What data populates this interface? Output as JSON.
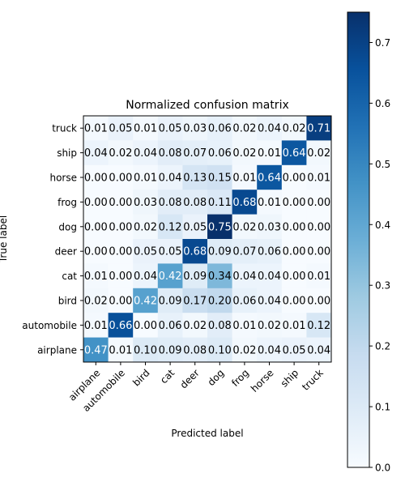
{
  "chart_data": {
    "type": "heatmap",
    "title": "Normalized confusion matrix",
    "xlabel": "Predicted label",
    "ylabel": "True label",
    "x_categories": [
      "airplane",
      "automobile",
      "bird",
      "cat",
      "deer",
      "dog",
      "frog",
      "horse",
      "ship",
      "truck"
    ],
    "y_categories": [
      "truck",
      "ship",
      "horse",
      "frog",
      "dog",
      "deer",
      "cat",
      "bird",
      "automobile",
      "airplane"
    ],
    "values": [
      [
        0.01,
        0.05,
        0.01,
        0.05,
        0.03,
        0.06,
        0.02,
        0.04,
        0.02,
        0.71
      ],
      [
        0.04,
        0.02,
        0.04,
        0.08,
        0.07,
        0.06,
        0.02,
        0.01,
        0.64,
        0.02
      ],
      [
        0.0,
        0.0,
        0.01,
        0.04,
        0.13,
        0.15,
        0.01,
        0.64,
        0.0,
        0.01
      ],
      [
        0.0,
        0.0,
        0.03,
        0.08,
        0.08,
        0.11,
        0.68,
        0.01,
        0.0,
        0.0
      ],
      [
        0.0,
        0.0,
        0.02,
        0.12,
        0.05,
        0.75,
        0.02,
        0.03,
        0.0,
        0.0
      ],
      [
        0.0,
        0.0,
        0.05,
        0.05,
        0.68,
        0.09,
        0.07,
        0.06,
        0.0,
        0.0
      ],
      [
        0.01,
        0.0,
        0.04,
        0.42,
        0.09,
        0.34,
        0.04,
        0.04,
        0.0,
        0.01
      ],
      [
        0.02,
        0.0,
        0.42,
        0.09,
        0.17,
        0.2,
        0.06,
        0.04,
        0.0,
        0.0
      ],
      [
        0.01,
        0.66,
        0.0,
        0.06,
        0.02,
        0.08,
        0.01,
        0.02,
        0.01,
        0.12
      ],
      [
        0.47,
        0.01,
        0.1,
        0.09,
        0.08,
        0.1,
        0.02,
        0.04,
        0.05,
        0.04
      ]
    ],
    "colormap": "Blues",
    "colorbar": {
      "min": 0.0,
      "max": 0.75,
      "ticks": [
        0.0,
        0.1,
        0.2,
        0.3,
        0.4,
        0.5,
        0.6,
        0.7
      ],
      "tick_labels": [
        "0.0",
        "0.1",
        "0.2",
        "0.3",
        "0.4",
        "0.5",
        "0.6",
        "0.7"
      ],
      "placement": "right"
    }
  }
}
